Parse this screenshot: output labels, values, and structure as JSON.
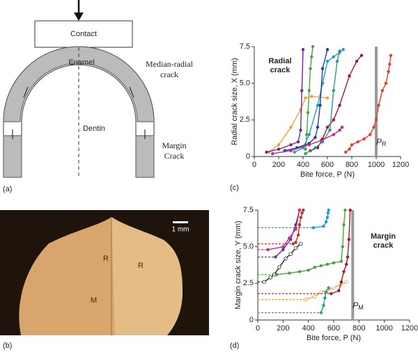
{
  "figure": {
    "panel_labels": [
      "(a)",
      "(b)",
      "(c)",
      "(d)"
    ],
    "diagram": {
      "contact": "Contact",
      "enamel": "Enamel",
      "dentin": "Dentin",
      "median_radial": [
        "Median-radial",
        "crack"
      ],
      "margin": [
        "Margin",
        "Crack"
      ]
    },
    "photo": {
      "scale": "1 mm",
      "labels": [
        "R",
        "R",
        "M"
      ]
    }
  },
  "chart_data": [
    {
      "type": "line",
      "annotation": [
        "Radial",
        "crack"
      ],
      "x_label": "Bite force, P (N)",
      "y_label": "Radial crack size, X (mm)",
      "xlim": [
        0,
        1200
      ],
      "xticks": [
        0,
        200,
        400,
        600,
        800,
        1000,
        1200
      ],
      "ylim": [
        0,
        7.5
      ],
      "yticks": [
        0,
        2.5,
        {
          "value": 5,
          "label": "5.0"
        },
        7.5
      ],
      "marker_x": 1000,
      "marker_label": "P",
      "marker_sub": "R",
      "series": [
        {
          "color": "#4aa33a",
          "x": [
            420,
            430,
            440,
            450,
            460,
            470,
            480
          ],
          "values": [
            0.5,
            1.5,
            3,
            4.5,
            6,
            6.8,
            7.5
          ]
        },
        {
          "color": "#1f9ad6",
          "x": [
            330,
            400,
            450,
            520,
            560,
            600,
            650,
            700,
            730
          ],
          "values": [
            0.3,
            0.6,
            1.5,
            3.5,
            5,
            6.5,
            6.8,
            7.1,
            7.3
          ]
        },
        {
          "color": "#d8432e",
          "x": [
            750,
            780,
            800,
            850,
            900,
            950,
            980,
            1000,
            1020,
            1050,
            1080,
            1100,
            1110,
            1120
          ],
          "values": [
            0.3,
            0.5,
            0.8,
            1.0,
            1.2,
            1.5,
            2,
            2.5,
            3.5,
            4.5,
            5,
            5.8,
            6.3,
            6.9
          ]
        },
        {
          "color": "#a4182c",
          "x": [
            460,
            520,
            560,
            600,
            650,
            700,
            780,
            840,
            880
          ],
          "values": [
            0.4,
            0.6,
            1.2,
            2.0,
            2.5,
            3.5,
            5.5,
            6.5,
            6.9
          ]
        },
        {
          "color": "#f0a030",
          "x": [
            120,
            200,
            300,
            380,
            420,
            470,
            600
          ],
          "values": [
            0.3,
            0.8,
            2.0,
            3.2,
            4.0,
            4.1,
            4.0
          ]
        },
        {
          "color": "#6a2a8c",
          "x": [
            100,
            200,
            300,
            360,
            380,
            390,
            400
          ],
          "values": [
            0.3,
            0.5,
            0.8,
            1.0,
            1.8,
            4.5,
            7.3
          ]
        },
        {
          "color": "#283c8c",
          "x": [
            250,
            350,
            450,
            500,
            520,
            540,
            560,
            600
          ],
          "values": [
            0.4,
            0.6,
            0.9,
            1.3,
            2.0,
            3.5,
            6.0,
            7.3
          ]
        },
        {
          "color": "#2a9a8a",
          "x": [
            420,
            500,
            560,
            620,
            650,
            680,
            700
          ],
          "values": [
            0.2,
            0.6,
            1.0,
            1.8,
            4.5,
            6.5,
            7.2
          ]
        },
        {
          "color": "#c0288c",
          "x": [
            150,
            300,
            450,
            550,
            650,
            700,
            720
          ],
          "values": [
            0.2,
            0.4,
            0.8,
            1.1,
            1.5,
            1.8,
            2.0
          ]
        }
      ]
    },
    {
      "type": "line",
      "annotation": [
        "Margin",
        "crack"
      ],
      "x_label": "Bite force, P (N)",
      "y_label": "Margin crack size, Y (mm)",
      "xlim": [
        0,
        1200
      ],
      "xticks": [
        0,
        200,
        400,
        600,
        800,
        1000,
        1200
      ],
      "ylim": [
        0,
        7.5
      ],
      "yticks": [
        0,
        2.5,
        {
          "value": 5,
          "label": "5.0"
        },
        7.5
      ],
      "marker_x": 750,
      "marker_label": "P",
      "marker_sub": "M",
      "series": [
        {
          "color": "#c8282c",
          "marker": "filled",
          "x": [
            280,
            300,
            320,
            330,
            340,
            350,
            360
          ],
          "values": [
            5.2,
            5.3,
            5.8,
            6.5,
            7.0,
            7.3,
            7.5
          ]
        },
        {
          "color": "#1f9ad6",
          "marker": "filled",
          "x": [
            440,
            520,
            540,
            550,
            555,
            560
          ],
          "values": [
            6.3,
            6.4,
            6.7,
            7.0,
            7.3,
            7.5
          ]
        },
        {
          "color": "#f0a030",
          "marker": "open",
          "x": [
            380,
            450,
            500,
            550,
            600,
            650,
            700
          ],
          "values": [
            1.4,
            1.6,
            1.9,
            2.0,
            2.2,
            2.4,
            2.6
          ]
        },
        {
          "color": "#a4182c",
          "marker": "filled",
          "x": [
            580,
            640,
            660,
            680,
            700,
            710,
            720,
            730
          ],
          "values": [
            1.8,
            2.0,
            2.6,
            3.3,
            3.8,
            4.3,
            5.5,
            7.5
          ]
        },
        {
          "color": "#4aa33a",
          "marker": "filled",
          "x": [
            150,
            250,
            330,
            400,
            450,
            500,
            550,
            600,
            660,
            670,
            680,
            690
          ],
          "values": [
            3.1,
            3.2,
            3.3,
            3.4,
            3.6,
            3.7,
            3.8,
            3.9,
            4.0,
            5.0,
            6.5,
            7.5
          ]
        },
        {
          "color": "#222222",
          "marker": "open",
          "x": [
            50,
            100,
            130,
            170,
            220,
            260,
            300,
            340
          ],
          "values": [
            2.6,
            2.9,
            3.1,
            3.6,
            4.2,
            4.5,
            4.9,
            5.2
          ]
        },
        {
          "color": "#6a2a8c",
          "marker": "filled",
          "x": [
            140,
            200,
            260,
            300,
            330
          ],
          "values": [
            4.3,
            4.8,
            5.5,
            6.5,
            7.5
          ]
        },
        {
          "color": "#2a9a8a",
          "marker": "filled",
          "x": [
            500,
            520,
            530,
            540,
            560
          ],
          "values": [
            0.5,
            1.0,
            1.5,
            1.9,
            2.2
          ]
        },
        {
          "color": "#c0288c",
          "marker": "filled",
          "x": [
            80,
            200,
            250,
            300,
            330
          ],
          "values": [
            4.8,
            5.0,
            5.6,
            6.2,
            7.5
          ]
        }
      ]
    }
  ]
}
